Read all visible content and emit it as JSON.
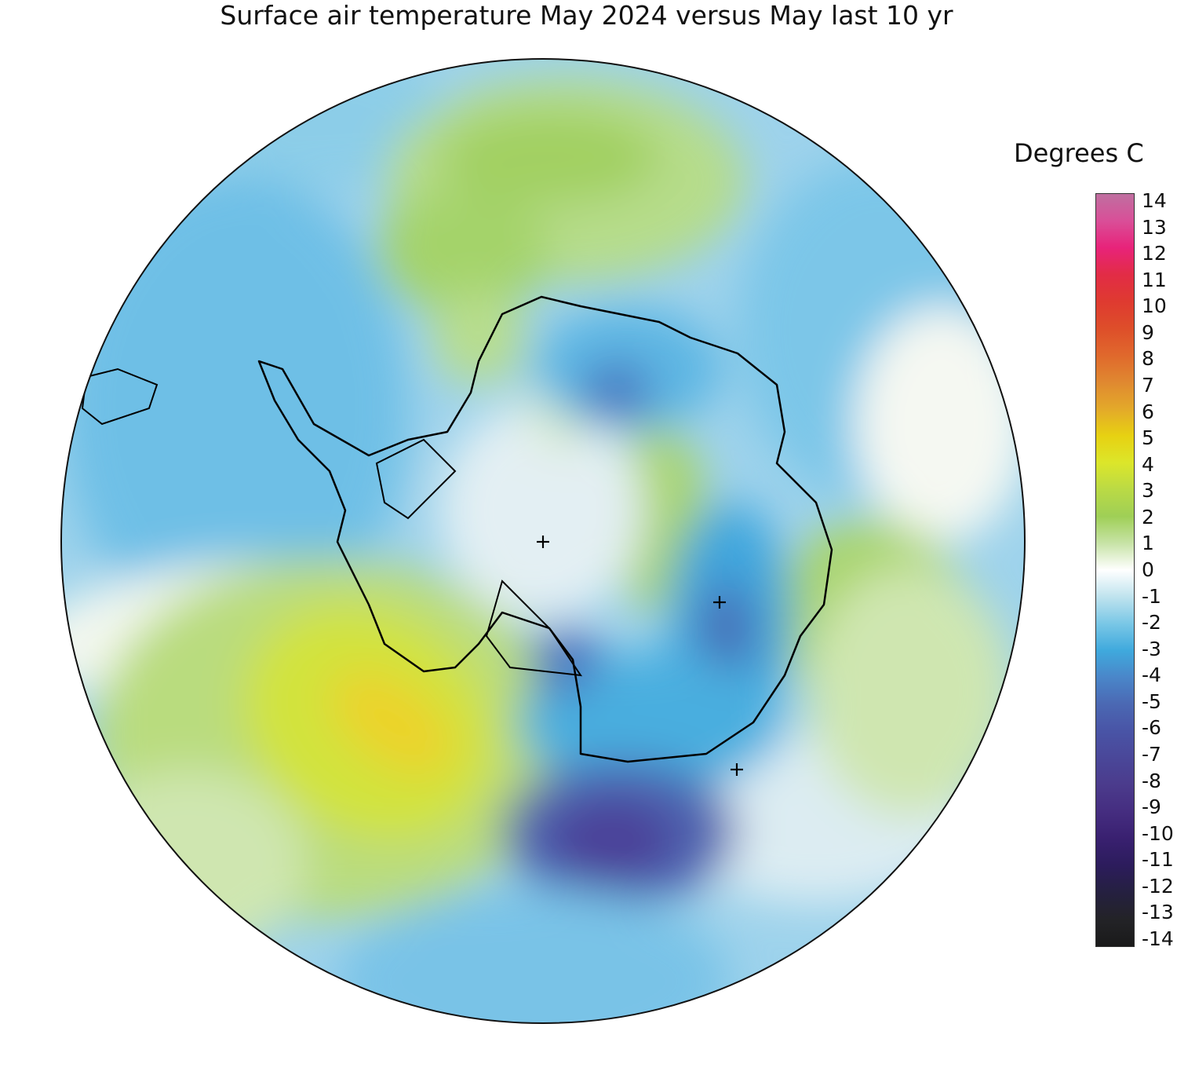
{
  "title": "Surface air temperature May 2024 versus May last 10 yr",
  "legend": {
    "title": "Degrees C",
    "ticks": [
      "14",
      "13",
      "12",
      "11",
      "10",
      "9",
      "8",
      "7",
      "6",
      "5",
      "4",
      "3",
      "2",
      "1",
      "0",
      "-1",
      "-2",
      "-3",
      "-4",
      "-5",
      "-6",
      "-7",
      "-8",
      "-9",
      "-10",
      "-11",
      "-12",
      "-13",
      "-14"
    ],
    "colors": [
      "#bf6fa0",
      "#d94f98",
      "#e8237a",
      "#e22c46",
      "#df3a30",
      "#de4e2a",
      "#e0682c",
      "#e08830",
      "#e3a92a",
      "#e7d112",
      "#dce62a",
      "#bada45",
      "#9fcf56",
      "#c7e3a6",
      "#ffffff",
      "#bfe3ee",
      "#79c7e6",
      "#3fa9dd",
      "#4a86c9",
      "#4b68b3",
      "#4954a6",
      "#4a4799",
      "#4b3b8c",
      "#452d80",
      "#392070",
      "#2c1c5c",
      "#252040",
      "#232327",
      "#1a1a1a"
    ]
  },
  "map": {
    "ocean_field_color": "#8fcde9",
    "crosses": 3
  }
}
